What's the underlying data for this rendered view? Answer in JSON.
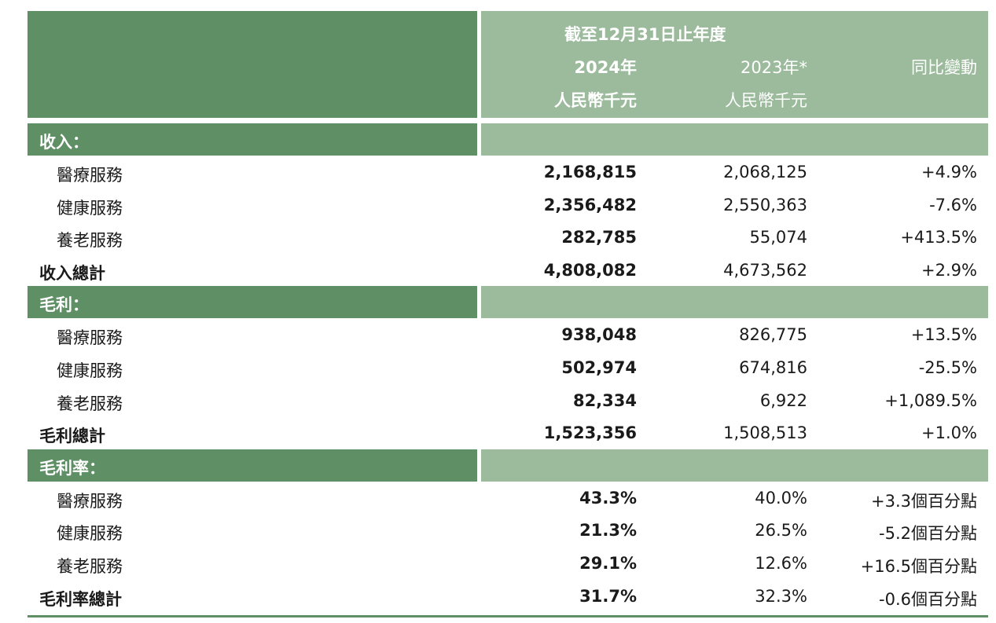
{
  "header": {
    "period": "截至12月31日止年度",
    "col_2024_year": "2024年",
    "col_2024_unit": "人民幣千元",
    "col_2023_year": "2023年*",
    "col_2023_unit": "人民幣千元",
    "col_yoy": "同比變動"
  },
  "sections": [
    {
      "title": "收入：",
      "rows": [
        {
          "label": "醫療服務",
          "v2024": "2,168,815",
          "v2023": "2,068,125",
          "yoy": "+4.9%"
        },
        {
          "label": "健康服務",
          "v2024": "2,356,482",
          "v2023": "2,550,363",
          "yoy": "-7.6%"
        },
        {
          "label": "養老服務",
          "v2024": "282,785",
          "v2023": "55,074",
          "yoy": "+413.5%"
        }
      ],
      "total": {
        "label": "收入總計",
        "v2024": "4,808,082",
        "v2023": "4,673,562",
        "yoy": "+2.9%"
      }
    },
    {
      "title": "毛利：",
      "rows": [
        {
          "label": "醫療服務",
          "v2024": "938,048",
          "v2023": "826,775",
          "yoy": "+13.5%"
        },
        {
          "label": "健康服務",
          "v2024": "502,974",
          "v2023": "674,816",
          "yoy": "-25.5%"
        },
        {
          "label": "養老服務",
          "v2024": "82,334",
          "v2023": "6,922",
          "yoy": "+1,089.5%"
        }
      ],
      "total": {
        "label": "毛利總計",
        "v2024": "1,523,356",
        "v2023": "1,508,513",
        "yoy": "+1.0%"
      }
    },
    {
      "title": "毛利率：",
      "rows": [
        {
          "label": "醫療服務",
          "v2024": "43.3%",
          "v2023": "40.0%",
          "yoy": "+3.3個百分點"
        },
        {
          "label": "健康服務",
          "v2024": "21.3%",
          "v2023": "26.5%",
          "yoy": "-5.2個百分點"
        },
        {
          "label": "養老服務",
          "v2024": "29.1%",
          "v2023": "12.6%",
          "yoy": "+16.5個百分點"
        }
      ],
      "total": {
        "label": "毛利率總計",
        "v2024": "31.7%",
        "v2023": "32.3%",
        "yoy": "-0.6個百分點"
      }
    }
  ],
  "colors": {
    "dark_green": "#5f8f64",
    "light_green": "#9bbb9c",
    "text": "#1a1a1a"
  }
}
